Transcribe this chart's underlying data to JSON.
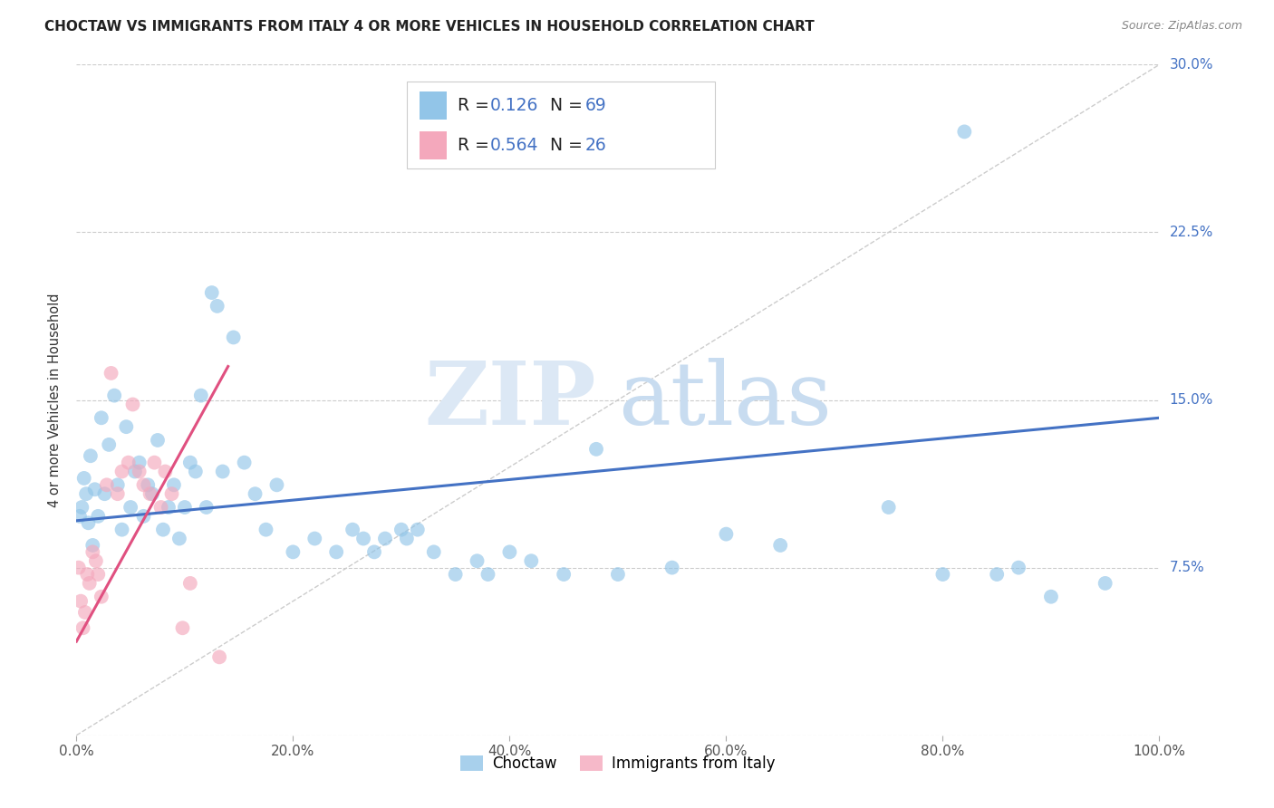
{
  "title": "CHOCTAW VS IMMIGRANTS FROM ITALY 4 OR MORE VEHICLES IN HOUSEHOLD CORRELATION CHART",
  "source": "Source: ZipAtlas.com",
  "xlabel_ticks": [
    "0.0%",
    "20.0%",
    "40.0%",
    "60.0%",
    "80.0%",
    "100.0%"
  ],
  "ylabel_ticks": [
    "0.0%",
    "7.5%",
    "15.0%",
    "22.5%",
    "30.0%"
  ],
  "ytick_vals": [
    0,
    7.5,
    15.0,
    22.5,
    30.0
  ],
  "xtick_vals": [
    0,
    20,
    40,
    60,
    80,
    100
  ],
  "ylabel": "4 or more Vehicles in Household",
  "xlim": [
    0,
    100
  ],
  "ylim": [
    0,
    30
  ],
  "r_blue_text": "0.126",
  "n_blue_text": "69",
  "r_pink_text": "0.564",
  "n_pink_text": "26",
  "watermark_zip": "ZIP",
  "watermark_atlas": "atlas",
  "background_color": "#ffffff",
  "grid_color": "#cccccc",
  "choctaw_color": "#92c5e8",
  "italy_color": "#f4a8bc",
  "choctaw_line_color": "#4472c4",
  "italy_line_color": "#e05080",
  "diag_line_color": "#cccccc",
  "ytick_color": "#4472c4",
  "xtick_color": "#555555",
  "legend_text_color": "#222222",
  "legend_num_color": "#4472c4",
  "choctaw_scatter": [
    [
      0.3,
      9.8
    ],
    [
      0.5,
      10.2
    ],
    [
      0.7,
      11.5
    ],
    [
      0.9,
      10.8
    ],
    [
      1.1,
      9.5
    ],
    [
      1.3,
      12.5
    ],
    [
      1.5,
      8.5
    ],
    [
      1.7,
      11.0
    ],
    [
      2.0,
      9.8
    ],
    [
      2.3,
      14.2
    ],
    [
      2.6,
      10.8
    ],
    [
      3.0,
      13.0
    ],
    [
      3.5,
      15.2
    ],
    [
      3.8,
      11.2
    ],
    [
      4.2,
      9.2
    ],
    [
      4.6,
      13.8
    ],
    [
      5.0,
      10.2
    ],
    [
      5.4,
      11.8
    ],
    [
      5.8,
      12.2
    ],
    [
      6.2,
      9.8
    ],
    [
      6.6,
      11.2
    ],
    [
      7.0,
      10.8
    ],
    [
      7.5,
      13.2
    ],
    [
      8.0,
      9.2
    ],
    [
      8.5,
      10.2
    ],
    [
      9.0,
      11.2
    ],
    [
      9.5,
      8.8
    ],
    [
      10.0,
      10.2
    ],
    [
      10.5,
      12.2
    ],
    [
      11.0,
      11.8
    ],
    [
      11.5,
      15.2
    ],
    [
      12.0,
      10.2
    ],
    [
      12.5,
      19.8
    ],
    [
      13.0,
      19.2
    ],
    [
      13.5,
      11.8
    ],
    [
      14.5,
      17.8
    ],
    [
      15.5,
      12.2
    ],
    [
      16.5,
      10.8
    ],
    [
      17.5,
      9.2
    ],
    [
      18.5,
      11.2
    ],
    [
      20.0,
      8.2
    ],
    [
      22.0,
      8.8
    ],
    [
      24.0,
      8.2
    ],
    [
      25.5,
      9.2
    ],
    [
      26.5,
      8.8
    ],
    [
      27.5,
      8.2
    ],
    [
      28.5,
      8.8
    ],
    [
      30.0,
      9.2
    ],
    [
      30.5,
      8.8
    ],
    [
      31.5,
      9.2
    ],
    [
      33.0,
      8.2
    ],
    [
      35.0,
      7.2
    ],
    [
      37.0,
      7.8
    ],
    [
      38.0,
      7.2
    ],
    [
      40.0,
      8.2
    ],
    [
      42.0,
      7.8
    ],
    [
      45.0,
      7.2
    ],
    [
      48.0,
      12.8
    ],
    [
      50.0,
      7.2
    ],
    [
      55.0,
      7.5
    ],
    [
      60.0,
      9.0
    ],
    [
      65.0,
      8.5
    ],
    [
      75.0,
      10.2
    ],
    [
      80.0,
      7.2
    ],
    [
      82.0,
      27.0
    ],
    [
      85.0,
      7.2
    ],
    [
      87.0,
      7.5
    ],
    [
      90.0,
      6.2
    ],
    [
      95.0,
      6.8
    ]
  ],
  "italy_scatter": [
    [
      0.2,
      7.5
    ],
    [
      0.4,
      6.0
    ],
    [
      0.6,
      4.8
    ],
    [
      0.8,
      5.5
    ],
    [
      1.0,
      7.2
    ],
    [
      1.2,
      6.8
    ],
    [
      1.5,
      8.2
    ],
    [
      1.8,
      7.8
    ],
    [
      2.0,
      7.2
    ],
    [
      2.3,
      6.2
    ],
    [
      2.8,
      11.2
    ],
    [
      3.2,
      16.2
    ],
    [
      3.8,
      10.8
    ],
    [
      4.2,
      11.8
    ],
    [
      4.8,
      12.2
    ],
    [
      5.2,
      14.8
    ],
    [
      5.8,
      11.8
    ],
    [
      6.2,
      11.2
    ],
    [
      6.8,
      10.8
    ],
    [
      7.2,
      12.2
    ],
    [
      7.8,
      10.2
    ],
    [
      8.2,
      11.8
    ],
    [
      8.8,
      10.8
    ],
    [
      9.8,
      4.8
    ],
    [
      10.5,
      6.8
    ],
    [
      13.2,
      3.5
    ]
  ],
  "blue_line": [
    [
      0,
      9.6
    ],
    [
      100,
      14.2
    ]
  ],
  "pink_line": [
    [
      0,
      4.2
    ],
    [
      14.0,
      16.5
    ]
  ],
  "diag_line": [
    [
      0,
      0
    ],
    [
      100,
      30
    ]
  ]
}
